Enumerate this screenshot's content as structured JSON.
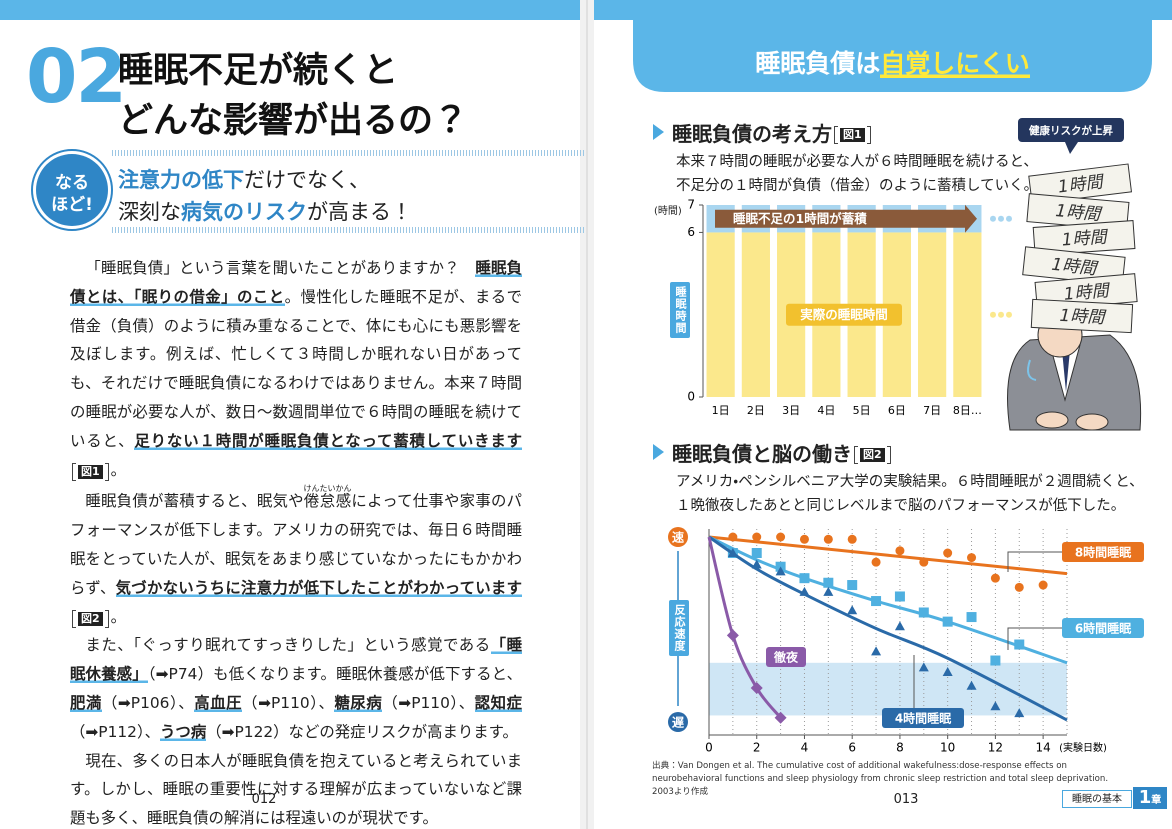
{
  "left_page": {
    "number": "02",
    "title": [
      "睡眠不足が続くと",
      "どんな影響が出るの？"
    ],
    "badge": [
      "なる",
      "ほど!"
    ],
    "subtitle": [
      [
        {
          "em": "注意力の低下"
        },
        {
          "t": "だけでなく、"
        }
      ],
      [
        {
          "t": "深刻な"
        },
        {
          "em": "病気のリスク"
        },
        {
          "t": "が高まる！"
        }
      ]
    ],
    "paragraphs": [
      [
        {
          "t": "「睡眠負債」という言葉を聞いたことがありますか？　"
        },
        {
          "b": "睡眠負債とは、「眠りの借金」のこと"
        },
        {
          "t": "。慢性化した睡眠不足が、まるで借金（負債）のように積み重なることで、体にも心にも悪影響を及ぼします。例えば、忙しくて３時間しか眠れない日があっても、それだけで睡眠負債になるわけではありません。本来７時間の睡眠が必要な人が、数日～数週間単位で６時間の睡眠を続けていると、"
        },
        {
          "b": "足りない１時間が睡眠負債となって蓄積していきます"
        },
        {
          "fig": "図1"
        },
        {
          "t": "。"
        }
      ],
      [
        {
          "t": "睡眠負債が蓄積すると、眠気や"
        },
        {
          "ruby": "倦怠感",
          "rt": "けんたいかん"
        },
        {
          "t": "によって仕事や家事のパフォーマンスが低下します。アメリカの研究では、毎日６時間睡眠をとっていた人が、眠気をあまり感じていなかったにもかかわらず、"
        },
        {
          "b": "気づかないうちに注意力が低下したことがわかっています"
        },
        {
          "fig": "図2"
        },
        {
          "t": "。"
        }
      ],
      [
        {
          "t": "また、「ぐっすり眠れてすっきりした」という感覚である"
        },
        {
          "b": "「睡眠休養感」"
        },
        {
          "t": "（➡P74）も低くなります。睡眠休養感が低下すると、"
        },
        {
          "b": "肥満"
        },
        {
          "t": "（➡P106）、"
        },
        {
          "b": "高血圧"
        },
        {
          "t": "（➡P110）、"
        },
        {
          "b": "糖尿病"
        },
        {
          "t": "（➡P110）、"
        },
        {
          "b": "認知症"
        },
        {
          "t": "（➡P112）、"
        },
        {
          "b": "うつ病"
        },
        {
          "t": "（➡P122）などの発症リスクが高まります。"
        }
      ],
      [
        {
          "t": "現在、多くの日本人が睡眠負債を抱えていると考えられています。しかし、睡眠の重要性に対する理解が広まっていないなど課題も多く、睡眠負債の解消には程遠いのが現状です。"
        }
      ]
    ],
    "page_number": "012"
  },
  "right_page": {
    "header": [
      {
        "t": "睡眠負債は"
      },
      {
        "em": "自覚しにくい"
      }
    ],
    "sections": [
      {
        "heading": "睡眠負債の考え方",
        "fig": "図1",
        "description": [
          "本来７時間の睡眠が必要な人が６時間睡眠を続けると、",
          "不足分の１時間が負債（借金）のように蓄積していく。"
        ]
      },
      {
        "heading": "睡眠負債と脳の働き",
        "fig": "図2",
        "description": [
          "アメリカ・ペンシルベニア大学の実験結果。６時間睡眠が２週間続くと、",
          "１晩徹夜したあとと同じレベルまで脳のパフォーマンスが低下した。"
        ]
      }
    ],
    "illustration": {
      "bubble": "健康リスクが上昇",
      "papers": [
        "1時間",
        "1時間",
        "1時間",
        "1時間",
        "1時間",
        "1時間"
      ]
    },
    "source": "出典：Van Dongen et al. The cumulative cost of additional wakefulness:dose-response effects on neurobehavioral functions and sleep physiology from chronic sleep restriction and total sleep deprivation. 2003より作成",
    "page_number": "013",
    "running_head": "睡眠の基本",
    "chapter": "1",
    "chapter_suffix": "章"
  },
  "chart_data": [
    {
      "type": "stacked_bar",
      "categories": [
        "1日",
        "2日",
        "3日",
        "4日",
        "5日",
        "6日",
        "7日",
        "8日…"
      ],
      "series": [
        {
          "name": "実際の睡眠時間",
          "color": "#fbe88c",
          "values": [
            6,
            6,
            6,
            6,
            6,
            6,
            6,
            6
          ]
        },
        {
          "name": "睡眠不足の1時間が蓄積",
          "color": "#a9d6f0",
          "values": [
            1,
            1,
            1,
            1,
            1,
            1,
            1,
            1
          ]
        }
      ],
      "ylim": [
        0,
        7
      ],
      "yticks": [
        0,
        6,
        7
      ],
      "y_unit": "(時間)",
      "y_label": "睡眠時間"
    },
    {
      "type": "scatter_trend",
      "xlim": [
        0,
        15
      ],
      "xticks": [
        0,
        2,
        4,
        6,
        8,
        10,
        12,
        14
      ],
      "x_label": "(実験日数)",
      "ylim": [
        0,
        8
      ],
      "y_label": "反応速度",
      "y_top_label": "速",
      "y_bottom_label": "遅",
      "band": [
        0.2,
        2.5
      ],
      "band_color": "#cfe6f5",
      "series": [
        {
          "name": "8時間睡眠",
          "color": "#e8731e",
          "marker": "circle",
          "x": [
            1,
            2,
            3,
            4,
            5,
            6,
            7,
            8,
            9,
            10,
            11,
            12,
            13,
            14
          ],
          "values": [
            8.0,
            8.0,
            8.0,
            7.9,
            7.9,
            7.9,
            6.9,
            7.4,
            6.9,
            7.3,
            7.1,
            6.2,
            5.8,
            5.9
          ],
          "trend": {
            "x": [
              0,
              15
            ],
            "values": [
              8.0,
              6.4
            ]
          }
        },
        {
          "name": "6時間睡眠",
          "color": "#4fb0e0",
          "marker": "square",
          "x": [
            1,
            2,
            3,
            4,
            5,
            6,
            7,
            8,
            9,
            10,
            11,
            12,
            13
          ],
          "values": [
            7.3,
            7.3,
            6.7,
            6.2,
            6.0,
            5.9,
            5.2,
            5.4,
            4.7,
            4.3,
            4.5,
            2.6,
            3.3
          ],
          "trend": {
            "x": [
              0,
              2,
              4,
              7,
              10,
              15
            ],
            "values": [
              8.0,
              7.0,
              6.2,
              5.2,
              4.3,
              2.5
            ]
          }
        },
        {
          "name": "4時間睡眠",
          "color": "#2a6aa8",
          "marker": "triangle",
          "x": [
            1,
            2,
            3,
            4,
            5,
            6,
            7,
            8,
            9,
            10,
            11,
            12,
            13
          ],
          "values": [
            7.3,
            6.8,
            6.5,
            5.6,
            5.6,
            4.8,
            3.0,
            4.1,
            2.3,
            2.1,
            1.5,
            0.6,
            0.3
          ],
          "trend": {
            "x": [
              0,
              2,
              4,
              7,
              10,
              15
            ],
            "values": [
              8.0,
              6.6,
              5.5,
              4.0,
              2.7,
              0.0
            ]
          }
        },
        {
          "name": "徹夜",
          "color": "#8a5aa8",
          "marker": "diamond",
          "x": [
            1,
            2,
            3
          ],
          "values": [
            3.7,
            1.4,
            0.1
          ],
          "trend": {
            "x": [
              0,
              1,
              2,
              3
            ],
            "values": [
              8.0,
              3.7,
              1.4,
              0.1
            ]
          }
        }
      ]
    }
  ]
}
